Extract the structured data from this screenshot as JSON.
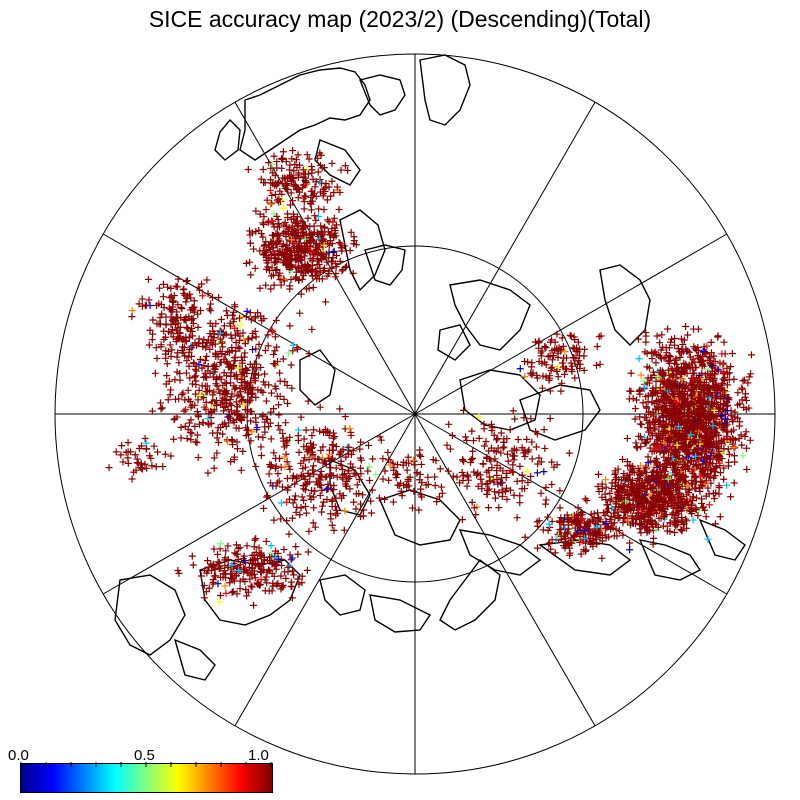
{
  "title": "SICE accuracy map (2023/2) (Descending)(Total)",
  "colorbar": {
    "min_label": "0.0",
    "mid_label": "0.5",
    "max_label": "1.0",
    "colors": [
      "#00008f",
      "#0000ff",
      "#0080ff",
      "#00ffff",
      "#80ff80",
      "#ffff00",
      "#ff8000",
      "#ff0000",
      "#800000"
    ]
  },
  "map": {
    "projection": "polar-stereographic-north",
    "graticule": {
      "meridian_spacing_deg": 30,
      "inner_circle": true
    },
    "marker": "plus",
    "dominant_color": "#8b0000",
    "accent_colors": [
      "#00008f",
      "#0000ff",
      "#00c0ff",
      "#80ff80",
      "#ffff00",
      "#ff8000",
      "#ff0000"
    ]
  }
}
